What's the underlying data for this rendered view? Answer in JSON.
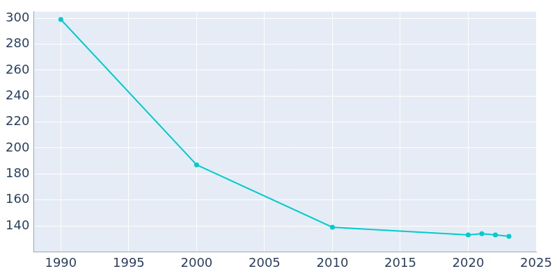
{
  "chart_data": {
    "type": "line",
    "x": [
      1990,
      2000,
      2010,
      2020,
      2021,
      2022,
      2023
    ],
    "values": [
      299,
      187,
      139,
      133,
      134,
      133,
      132
    ],
    "color": "#00cccc",
    "marker": "circle",
    "xlim": [
      1988,
      2025
    ],
    "xticks": [
      1990,
      1995,
      2000,
      2005,
      2010,
      2015,
      2020,
      2025
    ],
    "ylim": [
      120,
      305
    ],
    "yticks": [
      140,
      160,
      180,
      200,
      220,
      240,
      260,
      280,
      300
    ],
    "grid": true
  }
}
